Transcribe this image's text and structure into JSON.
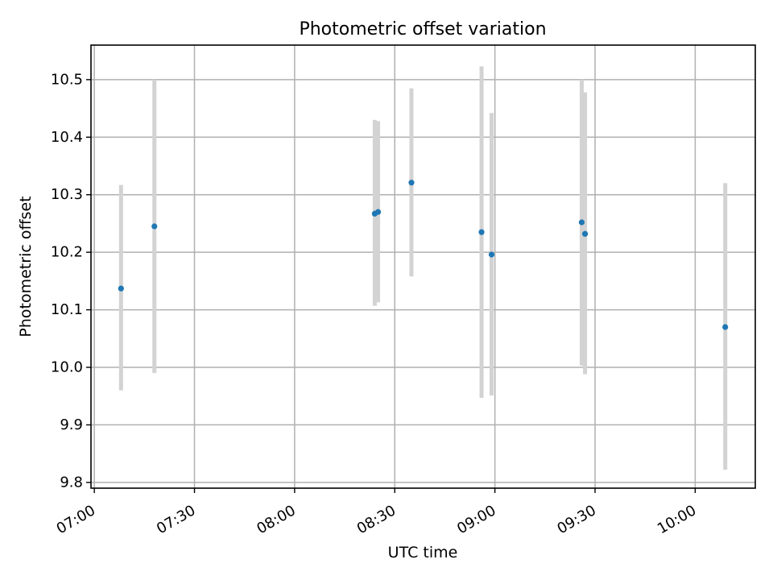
{
  "chart_data": {
    "type": "scatter",
    "title": "Photometric offset variation",
    "xlabel": "UTC time",
    "ylabel": "Photometric offset",
    "xlim": [
      "06:59",
      "10:18"
    ],
    "ylim": [
      9.79,
      10.56
    ],
    "xticks": [
      "07:00",
      "07:30",
      "08:00",
      "08:30",
      "09:00",
      "09:30",
      "10:00"
    ],
    "yticks": [
      9.8,
      9.9,
      10.0,
      10.1,
      10.2,
      10.3,
      10.4,
      10.5
    ],
    "ytick_labels": [
      "9.8",
      "9.9",
      "10.0",
      "10.1",
      "10.2",
      "10.3",
      "10.4",
      "10.5"
    ],
    "grid": true,
    "point_color": "#1f77b4",
    "errorbar_color": "#d3d3d3",
    "points": [
      {
        "x": "07:08",
        "y": 10.137,
        "ylow": 9.96,
        "yhigh": 10.317
      },
      {
        "x": "07:18",
        "y": 10.245,
        "ylow": 9.99,
        "yhigh": 10.5
      },
      {
        "x": "08:24",
        "y": 10.267,
        "ylow": 10.107,
        "yhigh": 10.43
      },
      {
        "x": "08:25",
        "y": 10.27,
        "ylow": 10.113,
        "yhigh": 10.428
      },
      {
        "x": "08:35",
        "y": 10.321,
        "ylow": 10.158,
        "yhigh": 10.485
      },
      {
        "x": "08:56",
        "y": 10.235,
        "ylow": 9.947,
        "yhigh": 10.523
      },
      {
        "x": "08:59",
        "y": 10.196,
        "ylow": 9.951,
        "yhigh": 10.442
      },
      {
        "x": "09:26",
        "y": 10.252,
        "ylow": 10.003,
        "yhigh": 10.5
      },
      {
        "x": "09:27",
        "y": 10.232,
        "ylow": 9.988,
        "yhigh": 10.478
      },
      {
        "x": "10:09",
        "y": 10.07,
        "ylow": 9.822,
        "yhigh": 10.32
      }
    ]
  }
}
